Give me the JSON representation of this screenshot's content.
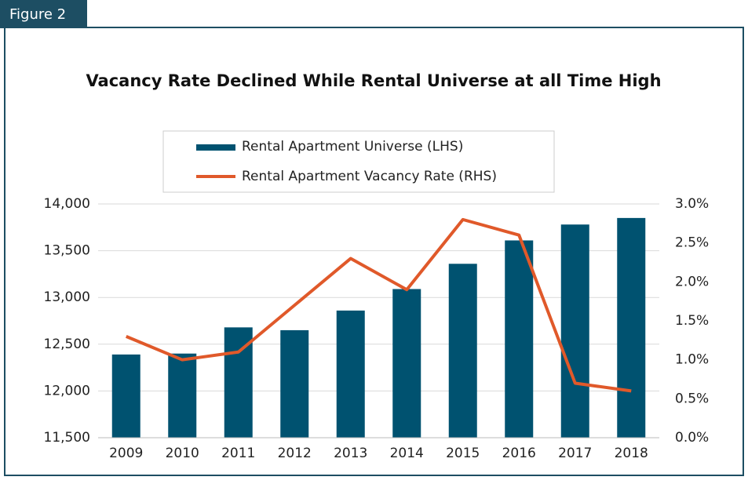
{
  "figure": "Figure 2",
  "chart_data": {
    "type": "bar",
    "title": "Vacancy Rate Declined While Rental Universe at all Time High",
    "categories": [
      "2009",
      "2010",
      "2011",
      "2012",
      "2013",
      "2014",
      "2015",
      "2016",
      "2017",
      "2018"
    ],
    "series": [
      {
        "name": "Rental Apartment Universe (LHS)",
        "type": "bar",
        "color": "#005270",
        "axis": "y",
        "values": [
          12390,
          12400,
          12680,
          12650,
          12860,
          13090,
          13360,
          13610,
          13780,
          13850
        ]
      },
      {
        "name": "Rental Apartment Vacancy Rate (RHS)",
        "type": "line",
        "color": "#e0592a",
        "axis": "y2",
        "values": [
          1.3,
          1.0,
          1.1,
          1.7,
          2.3,
          1.9,
          2.8,
          2.6,
          0.7,
          0.6
        ]
      }
    ],
    "ylim": [
      11500,
      14000
    ],
    "yticks": [
      {
        "value": 11500,
        "label": "11,500"
      },
      {
        "value": 12000,
        "label": "12,000"
      },
      {
        "value": 12500,
        "label": "12,500"
      },
      {
        "value": 13000,
        "label": "13,000"
      },
      {
        "value": 13500,
        "label": "13,500"
      },
      {
        "value": 14000,
        "label": "14,000"
      }
    ],
    "y2lim": [
      0,
      3
    ],
    "y2ticks": [
      {
        "value": 0,
        "label": "0.0%"
      },
      {
        "value": 0.5,
        "label": "0.5%"
      },
      {
        "value": 1,
        "label": "1.0%"
      },
      {
        "value": 1.5,
        "label": "1.5%"
      },
      {
        "value": 2,
        "label": "2.0%"
      },
      {
        "value": 2.5,
        "label": "2.5%"
      },
      {
        "value": 3,
        "label": "3.0%"
      }
    ],
    "grid": true
  }
}
